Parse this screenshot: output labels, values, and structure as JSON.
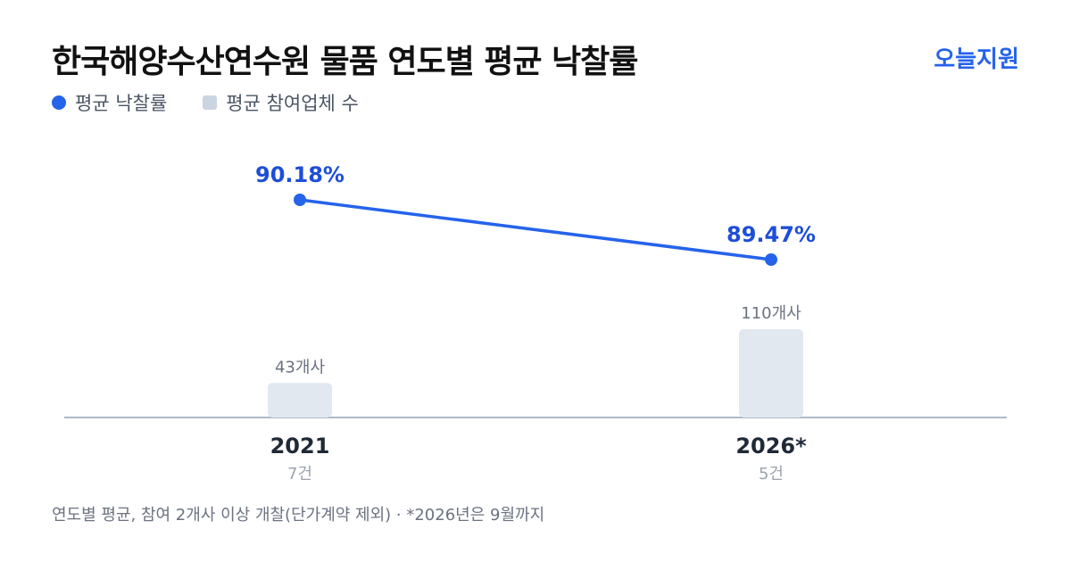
{
  "header": {
    "title": "한국해양수산연수원 물품 연도별 평균 낙찰률",
    "brand": "오늘지원"
  },
  "legend": {
    "rate_label": "평균 낙찰률",
    "count_label": "평균 참여업체 수"
  },
  "colors": {
    "line": "#2563eb",
    "bar": "#e2e8f0",
    "legend_square": "#cbd5e1",
    "baseline": "#94a3b8"
  },
  "chart_data": {
    "type": "bar",
    "categories": [
      "2021",
      "2026*"
    ],
    "sublabels": [
      "7건",
      "5건"
    ],
    "series": [
      {
        "name": "평균 낙찰률",
        "type": "line",
        "values": [
          90.18,
          89.47
        ],
        "labels": [
          "90.18%",
          "89.47%"
        ]
      },
      {
        "name": "평균 참여업체 수",
        "type": "bar",
        "values": [
          43,
          110
        ],
        "labels": [
          "43개사",
          "110개사"
        ]
      }
    ],
    "legend_position": "top-left",
    "grid": false
  },
  "footnote": "연도별 평균, 참여 2개사 이상 개찰(단가계약 제외) · *2026년은 9월까지"
}
